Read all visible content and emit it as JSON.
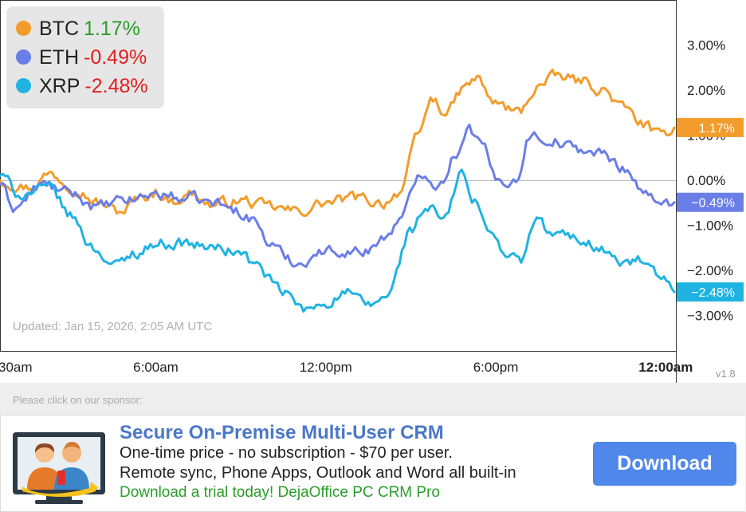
{
  "chart_data": {
    "type": "line",
    "ylabel": "",
    "xlabel": "",
    "ylim": [
      -3.3,
      4.0
    ],
    "y_ticks": [
      "3.00%",
      "2.00%",
      "1.00%",
      "0.00%",
      "−1.00%",
      "−2.00%",
      "−3.00%"
    ],
    "y_tick_values": [
      3,
      2,
      1,
      0,
      -1,
      -2,
      -3
    ],
    "x_ticks": [
      {
        "label": "30am",
        "bold": false
      },
      {
        "label": "6:00am",
        "bold": false
      },
      {
        "label": "12:00pm",
        "bold": false
      },
      {
        "label": "6:00pm",
        "bold": false
      },
      {
        "label": "12:00am",
        "bold": true
      }
    ],
    "x_tick_hours": [
      0.5,
      6,
      12,
      18,
      24
    ],
    "x_range_hours": [
      0.5,
      24.3
    ],
    "zero_line": true,
    "legend_position": "top-left",
    "series": [
      {
        "name": "BTC",
        "change": "1.17%",
        "end_label": "1.17%",
        "color": "#f39c2b",
        "change_color": "#2a9d2a",
        "knots": [
          [
            0.5,
            0.0
          ],
          [
            1.5,
            -0.15
          ],
          [
            2.3,
            0.15
          ],
          [
            3.0,
            -0.1
          ],
          [
            4.0,
            -0.5
          ],
          [
            4.7,
            -0.7
          ],
          [
            5.5,
            -0.4
          ],
          [
            6.0,
            -0.25
          ],
          [
            6.5,
            -0.45
          ],
          [
            7.3,
            -0.3
          ],
          [
            8.0,
            -0.55
          ],
          [
            9.0,
            -0.45
          ],
          [
            10.0,
            -0.6
          ],
          [
            11.0,
            -0.7
          ],
          [
            12.0,
            -0.5
          ],
          [
            13.0,
            -0.4
          ],
          [
            14.0,
            -0.5
          ],
          [
            14.6,
            -0.25
          ],
          [
            15.3,
            1.0
          ],
          [
            15.7,
            1.8
          ],
          [
            16.3,
            1.5
          ],
          [
            16.8,
            2.0
          ],
          [
            17.3,
            2.25
          ],
          [
            18.0,
            1.7
          ],
          [
            18.8,
            1.5
          ],
          [
            19.5,
            2.1
          ],
          [
            20.2,
            2.3
          ],
          [
            21.0,
            2.2
          ],
          [
            21.8,
            2.0
          ],
          [
            22.5,
            1.6
          ],
          [
            23.2,
            1.25
          ],
          [
            23.8,
            0.95
          ],
          [
            24.3,
            1.17
          ]
        ]
      },
      {
        "name": "ETH",
        "change": "-0.49%",
        "end_label": "−0.49%",
        "color": "#6a7ee8",
        "change_color": "#e02020",
        "knots": [
          [
            0.5,
            -0.1
          ],
          [
            1.0,
            -0.6
          ],
          [
            2.0,
            -0.1
          ],
          [
            3.0,
            -0.3
          ],
          [
            4.0,
            -0.6
          ],
          [
            5.0,
            -0.45
          ],
          [
            6.0,
            -0.3
          ],
          [
            7.0,
            -0.4
          ],
          [
            8.0,
            -0.5
          ],
          [
            9.0,
            -0.7
          ],
          [
            9.5,
            -0.9
          ],
          [
            10.0,
            -1.4
          ],
          [
            10.6,
            -1.7
          ],
          [
            11.0,
            -1.85
          ],
          [
            11.8,
            -1.6
          ],
          [
            12.5,
            -1.55
          ],
          [
            13.3,
            -1.6
          ],
          [
            14.0,
            -1.3
          ],
          [
            14.6,
            -0.9
          ],
          [
            15.4,
            0.2
          ],
          [
            16.0,
            -0.1
          ],
          [
            16.6,
            0.6
          ],
          [
            17.0,
            1.2
          ],
          [
            17.5,
            0.8
          ],
          [
            18.0,
            0.0
          ],
          [
            18.7,
            0.0
          ],
          [
            19.2,
            1.0
          ],
          [
            20.0,
            0.9
          ],
          [
            20.8,
            0.7
          ],
          [
            21.6,
            0.6
          ],
          [
            22.5,
            0.3
          ],
          [
            23.2,
            -0.2
          ],
          [
            23.8,
            -0.6
          ],
          [
            24.3,
            -0.49
          ]
        ]
      },
      {
        "name": "XRP",
        "change": "-2.48%",
        "end_label": "−2.48%",
        "color": "#1fb3e3",
        "change_color": "#e02020",
        "knots": [
          [
            0.5,
            0.1
          ],
          [
            1.2,
            -0.3
          ],
          [
            2.3,
            -0.2
          ],
          [
            3.0,
            -0.8
          ],
          [
            3.8,
            -1.5
          ],
          [
            4.6,
            -1.9
          ],
          [
            5.3,
            -1.6
          ],
          [
            6.0,
            -1.4
          ],
          [
            7.0,
            -1.4
          ],
          [
            8.0,
            -1.5
          ],
          [
            9.0,
            -1.6
          ],
          [
            9.5,
            -1.9
          ],
          [
            10.5,
            -2.5
          ],
          [
            11.3,
            -2.9
          ],
          [
            12.0,
            -2.7
          ],
          [
            12.7,
            -2.5
          ],
          [
            13.5,
            -2.8
          ],
          [
            14.2,
            -2.55
          ],
          [
            15.0,
            -1.1
          ],
          [
            15.6,
            -0.6
          ],
          [
            16.2,
            -0.9
          ],
          [
            16.8,
            0.2
          ],
          [
            17.2,
            -0.5
          ],
          [
            17.7,
            -1.0
          ],
          [
            18.3,
            -1.6
          ],
          [
            18.9,
            -1.8
          ],
          [
            19.4,
            -0.9
          ],
          [
            20.0,
            -1.2
          ],
          [
            21.0,
            -1.3
          ],
          [
            21.7,
            -1.5
          ],
          [
            22.4,
            -1.85
          ],
          [
            23.2,
            -1.8
          ],
          [
            23.8,
            -2.2
          ],
          [
            24.3,
            -2.48
          ]
        ]
      }
    ],
    "updated": "Updated: Jan 15, 2026, 2:05 AM UTC"
  },
  "version": "v1.8",
  "sponsor": {
    "label": "Please click on our sponsor:",
    "title": "Secure On-Premise Multi-User CRM",
    "line1": "One-time price - no subscription - $70 per user.",
    "line2": "Remote sync, Phone Apps, Outlook and Word all built-in",
    "line3": "Download a trial today! DejaOffice PC CRM Pro",
    "button": "Download",
    "icon": "crm-people-monitor-icon"
  }
}
